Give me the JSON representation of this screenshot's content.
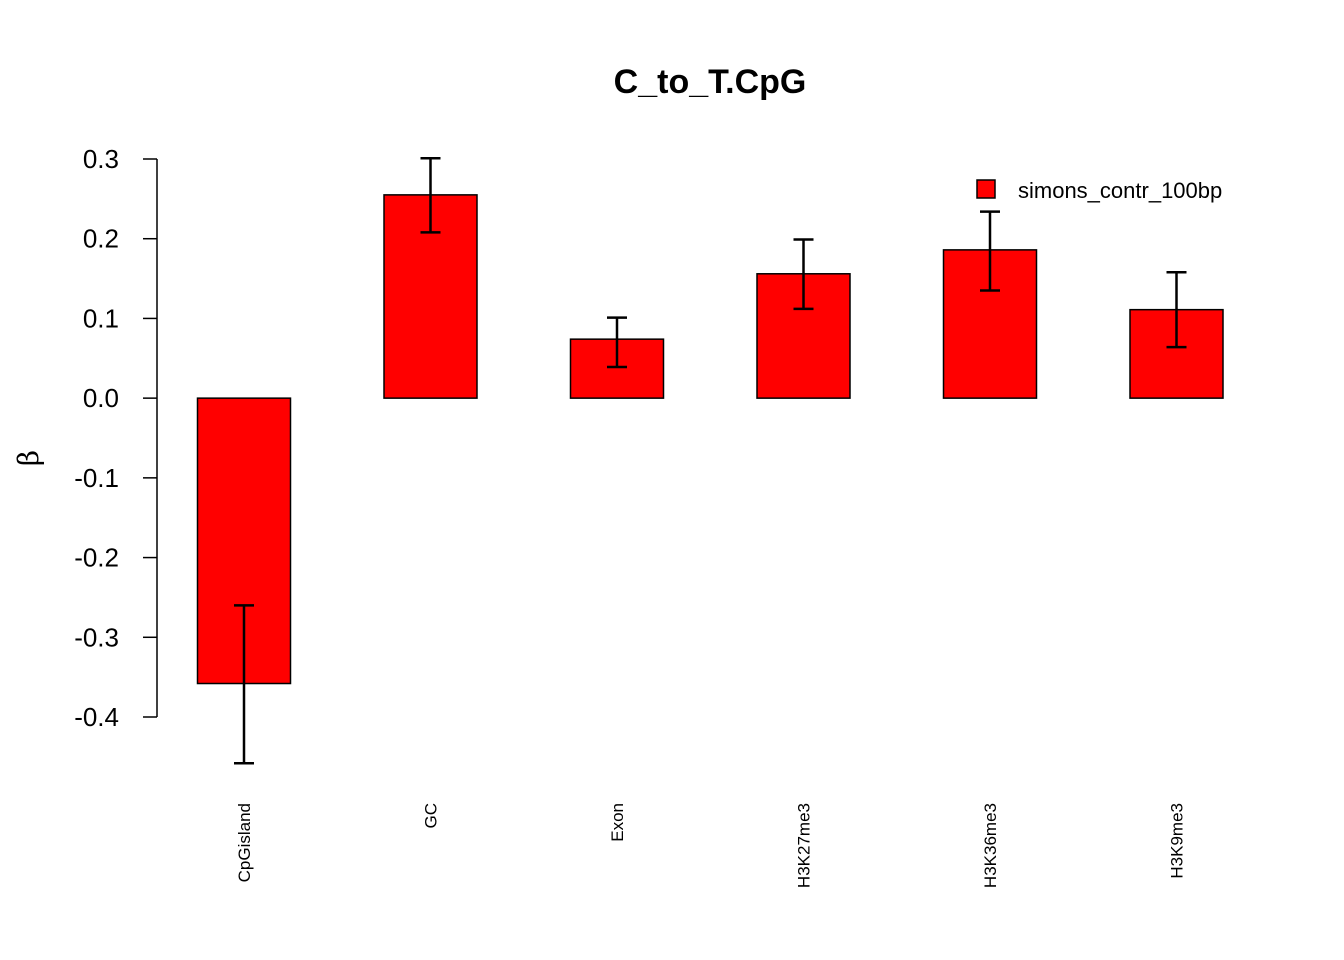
{
  "chart_data": {
    "type": "bar",
    "title": "C_to_T.CpG",
    "xlabel": "",
    "ylabel": "β",
    "categories": [
      "CpGisland",
      "GC",
      "Exon",
      "H3K27me3",
      "H3K36me3",
      "H3K9me3"
    ],
    "series": [
      {
        "name": "simons_contr_100bp",
        "color": "#ff0000",
        "values": [
          -0.358,
          0.255,
          0.074,
          0.156,
          0.186,
          0.111
        ],
        "err_low": [
          -0.458,
          0.208,
          0.039,
          0.112,
          0.135,
          0.064
        ],
        "err_high": [
          -0.26,
          0.301,
          0.101,
          0.199,
          0.234,
          0.158
        ]
      }
    ],
    "yticks": [
      "0.3",
      "0.2",
      "0.1",
      "0.0",
      "-0.1",
      "-0.2",
      "-0.3",
      "-0.4"
    ],
    "ytick_values": [
      0.3,
      0.2,
      0.1,
      0.0,
      -0.1,
      -0.2,
      -0.3,
      -0.4
    ],
    "ylim": [
      -0.4,
      0.3
    ],
    "grid": false,
    "legend_position": "top-right"
  }
}
